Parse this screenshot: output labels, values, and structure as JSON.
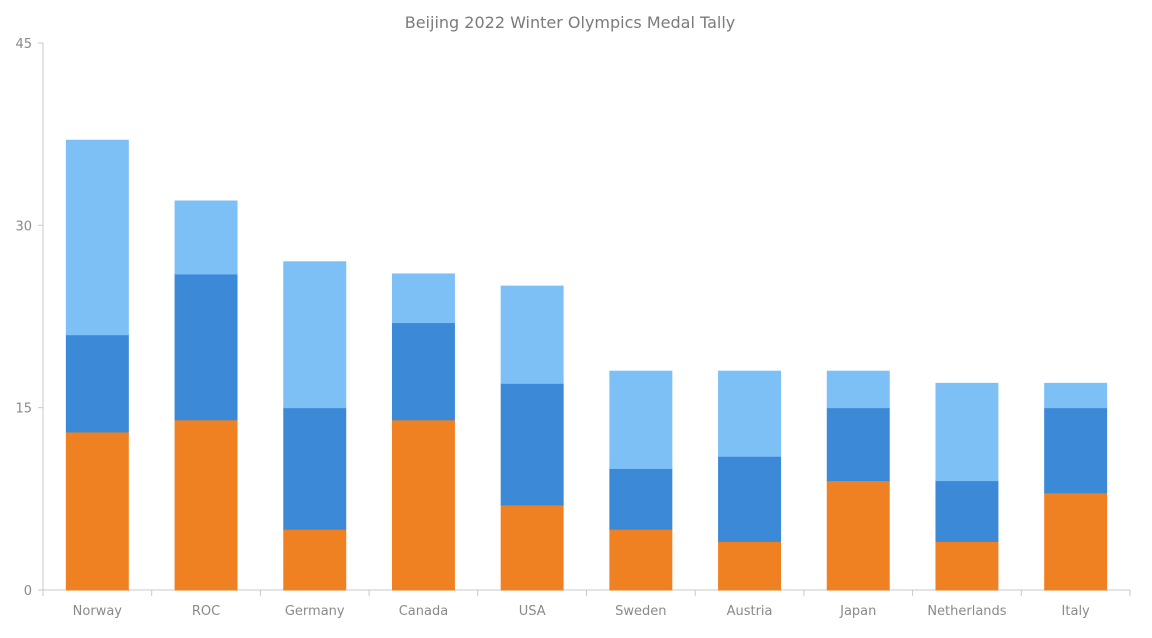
{
  "chart_data": {
    "type": "bar",
    "stacked": true,
    "title": "Beijing 2022 Winter Olympics Medal Tally",
    "xlabel": "",
    "ylabel": "",
    "ylim": [
      0,
      45
    ],
    "yticks": [
      0,
      15,
      30,
      45
    ],
    "grid": false,
    "legend": "none",
    "categories": [
      "Norway",
      "ROC",
      "Germany",
      "Canada",
      "USA",
      "Sweden",
      "Austria",
      "Japan",
      "Netherlands",
      "Italy"
    ],
    "series": [
      {
        "color": "#f08123",
        "values": [
          13,
          14,
          5,
          14,
          7,
          5,
          4,
          9,
          4,
          8
        ]
      },
      {
        "color": "#3c89d7",
        "values": [
          8,
          12,
          10,
          8,
          10,
          5,
          7,
          6,
          5,
          7
        ]
      },
      {
        "color": "#7dc0f6",
        "values": [
          16,
          6,
          12,
          4,
          8,
          8,
          7,
          3,
          8,
          2
        ]
      }
    ]
  },
  "colors": {
    "axis": "#c9c9c9",
    "title": "#7b7b7b",
    "tick_text": "#8a8a8a",
    "background": "#ffffff"
  }
}
